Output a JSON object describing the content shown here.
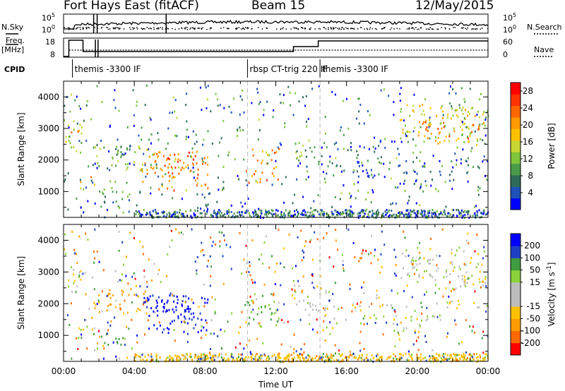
{
  "header": {
    "station": "Fort Hays East (fitACF)",
    "beam": "Beam 15",
    "date": "12/May/2015"
  },
  "labels": {
    "nsky": "N.Sky",
    "nsearch": "N.Search",
    "freq": "Freq.",
    "freq_unit": "[MHz]",
    "nave": "Nave",
    "cpid": "CPID"
  },
  "noise_axis": {
    "ticks": [
      "10^5",
      "10^0"
    ]
  },
  "freq_axis": {
    "left_ticks": [
      "18",
      "8"
    ],
    "right_ticks": [
      "60",
      "0"
    ]
  },
  "cpid_segments": [
    {
      "label": "themis -3300 IF",
      "start": 0.5,
      "end": 10.4
    },
    {
      "label": "rbsp CT-trig 220 IF",
      "start": 10.4,
      "end": 14.5
    },
    {
      "label": "themis -3300 IF",
      "start": 14.5,
      "end": 24
    }
  ],
  "colors": {
    "power": [
      "#0000ff",
      "#1f52b8",
      "#2f6b5a",
      "#4a9c4a",
      "#7fc43a",
      "#c8d633",
      "#ffc000",
      "#ff9a00",
      "#ff6600",
      "#ff3300",
      "#ff0000"
    ],
    "velocity": [
      "#ff0000",
      "#ff6a00",
      "#ff9c00",
      "#ffc200",
      "#bdbdbd",
      "#bdbdbd",
      "#8ad23a",
      "#3f9c3f",
      "#1f3fc4",
      "#0000ff"
    ]
  },
  "chart_data": [
    {
      "type": "heatmap",
      "name_of_panel": "power",
      "ylabel": "Slant Range [km]",
      "xlabel": "",
      "ylim": [
        180,
        4500
      ],
      "xlim": [
        0,
        24
      ],
      "yticks": [
        1000,
        2000,
        3000,
        4000
      ],
      "colorbar": {
        "label": "Power [dB]",
        "ticks": [
          4,
          8,
          12,
          16,
          20,
          24,
          28
        ],
        "range": [
          0,
          30
        ]
      },
      "blobs": [
        {
          "t0": 0.1,
          "t1": 1.2,
          "r0": 2300,
          "r1": 3200,
          "v": 14
        },
        {
          "t0": 0.4,
          "t1": 0.9,
          "r0": 2600,
          "r1": 3000,
          "v": 22
        },
        {
          "t0": 0.9,
          "t1": 1.8,
          "r0": 1100,
          "r1": 1500,
          "v": 18
        },
        {
          "t0": 1.6,
          "t1": 4.8,
          "r0": 1700,
          "r1": 2500,
          "v": 12
        },
        {
          "t0": 2.0,
          "t1": 3.5,
          "r0": 700,
          "r1": 1150,
          "v": 10
        },
        {
          "t0": 4.3,
          "t1": 8.2,
          "r0": 1050,
          "r1": 2300,
          "v": 20
        },
        {
          "t0": 5.0,
          "t1": 7.5,
          "r0": 1600,
          "r1": 2300,
          "v": 24
        },
        {
          "t0": 10.3,
          "t1": 12.2,
          "r0": 1300,
          "r1": 2400,
          "v": 21
        },
        {
          "t0": 13.0,
          "t1": 14.6,
          "r0": 2000,
          "r1": 2700,
          "v": 13
        },
        {
          "t0": 13.5,
          "t1": 20.0,
          "r0": 1800,
          "r1": 2000,
          "v": 6
        },
        {
          "t0": 14.5,
          "t1": 19.0,
          "r0": 2350,
          "r1": 2450,
          "v": 6
        },
        {
          "t0": 14.5,
          "t1": 22.0,
          "r0": 1500,
          "r1": 1700,
          "v": 5
        },
        {
          "t0": 18.5,
          "t1": 20.5,
          "r0": 1050,
          "r1": 1400,
          "v": 5
        },
        {
          "t0": 19.0,
          "t1": 24.0,
          "r0": 2500,
          "r1": 3800,
          "v": 16
        },
        {
          "t0": 20.0,
          "t1": 23.5,
          "r0": 2700,
          "r1": 3300,
          "v": 22
        },
        {
          "t0": 21.0,
          "t1": 24.0,
          "r0": 1900,
          "r1": 2100,
          "v": 5
        }
      ]
    },
    {
      "type": "heatmap",
      "name_of_panel": "velocity",
      "ylabel": "Slant Range [km]",
      "xlabel": "Time UT",
      "ylim": [
        180,
        4500
      ],
      "xlim": [
        0,
        24
      ],
      "yticks": [
        1000,
        2000,
        3000,
        4000
      ],
      "xticks": [
        "00:00",
        "04:00",
        "08:00",
        "12:00",
        "16:00",
        "20:00",
        "00:00"
      ],
      "colorbar": {
        "label": "Velocity [m s^-1]",
        "ticks": [
          -200,
          -100,
          -50,
          -15,
          15,
          50,
          100,
          200
        ],
        "range": [
          -250,
          250
        ]
      },
      "blobs": [
        {
          "t0": 0.1,
          "t1": 1.2,
          "r0": 2300,
          "r1": 3200,
          "v": 0
        },
        {
          "t0": 0.9,
          "t1": 1.8,
          "r0": 1100,
          "r1": 1500,
          "v": 0
        },
        {
          "t0": 1.6,
          "t1": 4.8,
          "r0": 1700,
          "r1": 2500,
          "v": -70
        },
        {
          "t0": 2.0,
          "t1": 3.5,
          "r0": 700,
          "r1": 1150,
          "v": 60
        },
        {
          "t0": 4.3,
          "t1": 8.2,
          "r0": 1050,
          "r1": 2300,
          "v": 200
        },
        {
          "t0": 5.0,
          "t1": 7.5,
          "r0": 1600,
          "r1": 2300,
          "v": 230
        },
        {
          "t0": 10.3,
          "t1": 12.2,
          "r0": 1300,
          "r1": 2400,
          "v": 40
        },
        {
          "t0": 13.0,
          "t1": 14.6,
          "r0": 2000,
          "r1": 2700,
          "v": 0
        },
        {
          "t0": 13.5,
          "t1": 20.0,
          "r0": 1800,
          "r1": 2000,
          "v": 0
        },
        {
          "t0": 14.5,
          "t1": 19.0,
          "r0": 2350,
          "r1": 2450,
          "v": 0
        },
        {
          "t0": 14.5,
          "t1": 22.0,
          "r0": 1500,
          "r1": 1700,
          "v": 0
        },
        {
          "t0": 18.5,
          "t1": 20.5,
          "r0": 1050,
          "r1": 1400,
          "v": 0
        },
        {
          "t0": 19.0,
          "t1": 24.0,
          "r0": 2500,
          "r1": 3800,
          "v": 0
        },
        {
          "t0": 21.0,
          "t1": 24.0,
          "r0": 1900,
          "r1": 2100,
          "v": 0
        }
      ]
    }
  ]
}
